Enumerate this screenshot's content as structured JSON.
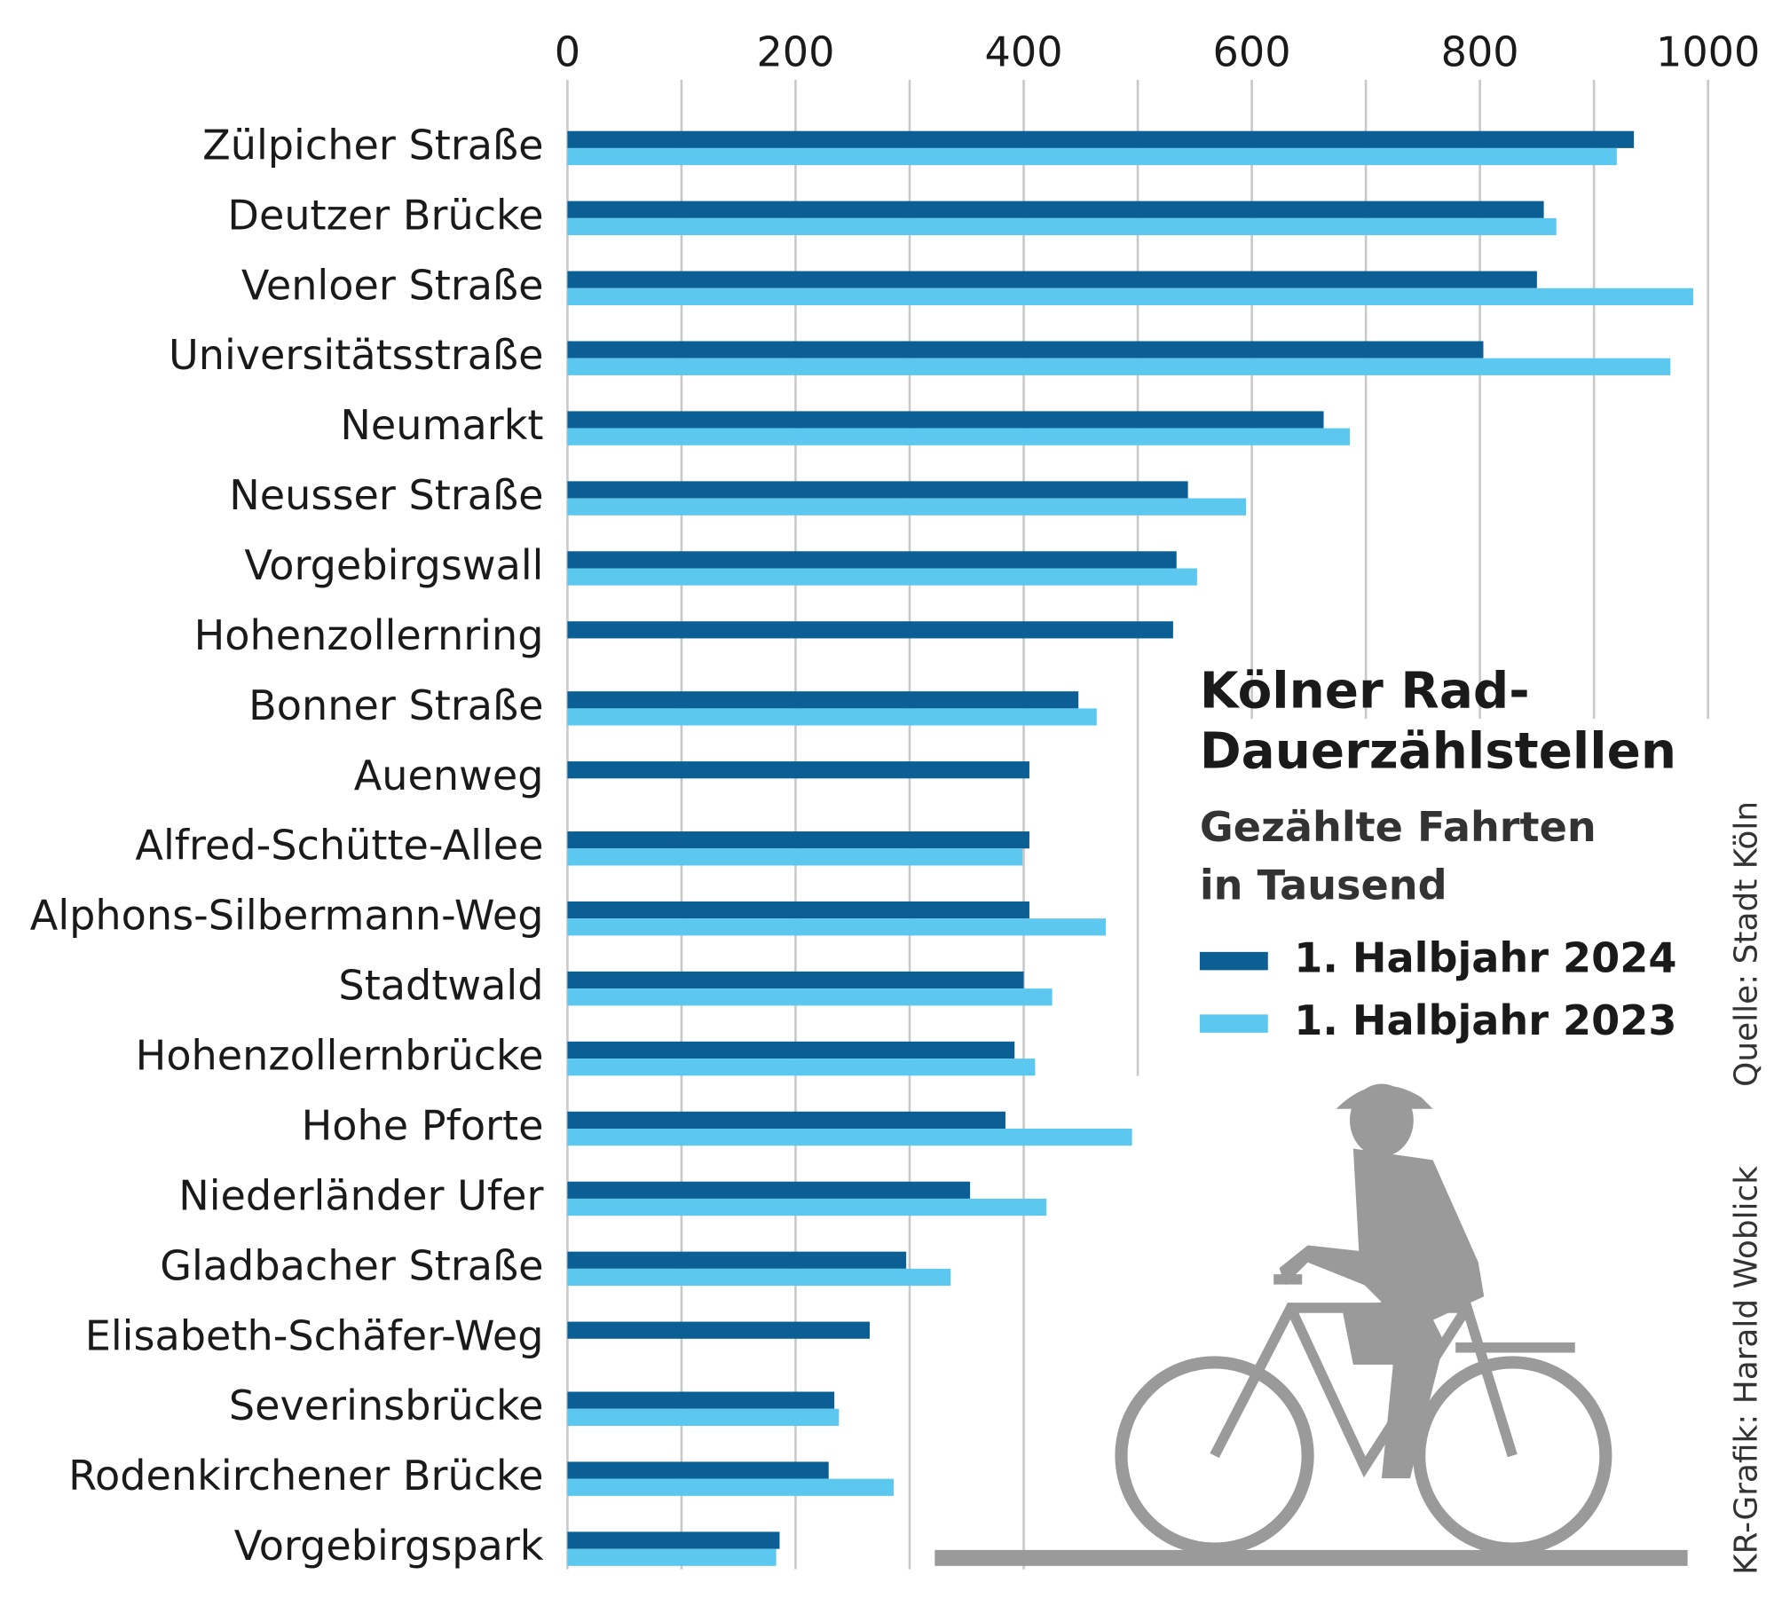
{
  "chart_data": {
    "type": "bar",
    "orientation": "horizontal",
    "title": [
      "Kölner Rad-",
      "Dauerzählstellen"
    ],
    "subtitle": [
      "Gezählte Fahrten",
      "in Tausend"
    ],
    "source": "Quelle: Stadt Köln",
    "credit": "KR-Grafik: Harald Woblick",
    "categories": [
      "Zülpicher Straße",
      "Deutzer Brücke",
      "Venloer Straße",
      "Universitätsstraße",
      "Neumarkt",
      "Neusser Straße",
      "Vorgebirgswall",
      "Hohenzollernring",
      "Bonner Straße",
      "Auenweg",
      "Alfred-Schütte-Allee",
      "Alphons-Silbermann-Weg",
      "Stadtwald",
      "Hohenzollernbrücke",
      "Hohe Pforte",
      "Niederländer Ufer",
      "Gladbacher Straße",
      "Elisabeth-Schäfer-Weg",
      "Severinsbrücke",
      "Rodenkirchener Brücke",
      "Vorgebirgspark"
    ],
    "series": [
      {
        "name": "1. Halbjahr 2024",
        "color": "#0b5f94",
        "values": [
          935,
          856,
          850,
          803,
          663,
          544,
          534,
          531,
          448,
          405,
          405,
          405,
          400,
          392,
          384,
          353,
          297,
          265,
          234,
          229,
          186
        ]
      },
      {
        "name": "1. Halbjahr 2023",
        "color": "#5cc8ef",
        "values": [
          920,
          867,
          987,
          967,
          686,
          595,
          552,
          null,
          464,
          null,
          399,
          472,
          425,
          410,
          495,
          420,
          336,
          null,
          238,
          286,
          183
        ]
      }
    ],
    "xlim": [
      0,
      1000
    ],
    "xticks": [
      0,
      200,
      400,
      600,
      800,
      1000
    ],
    "minor_xticks": [
      100,
      300,
      500,
      700,
      900
    ],
    "grid": true
  }
}
